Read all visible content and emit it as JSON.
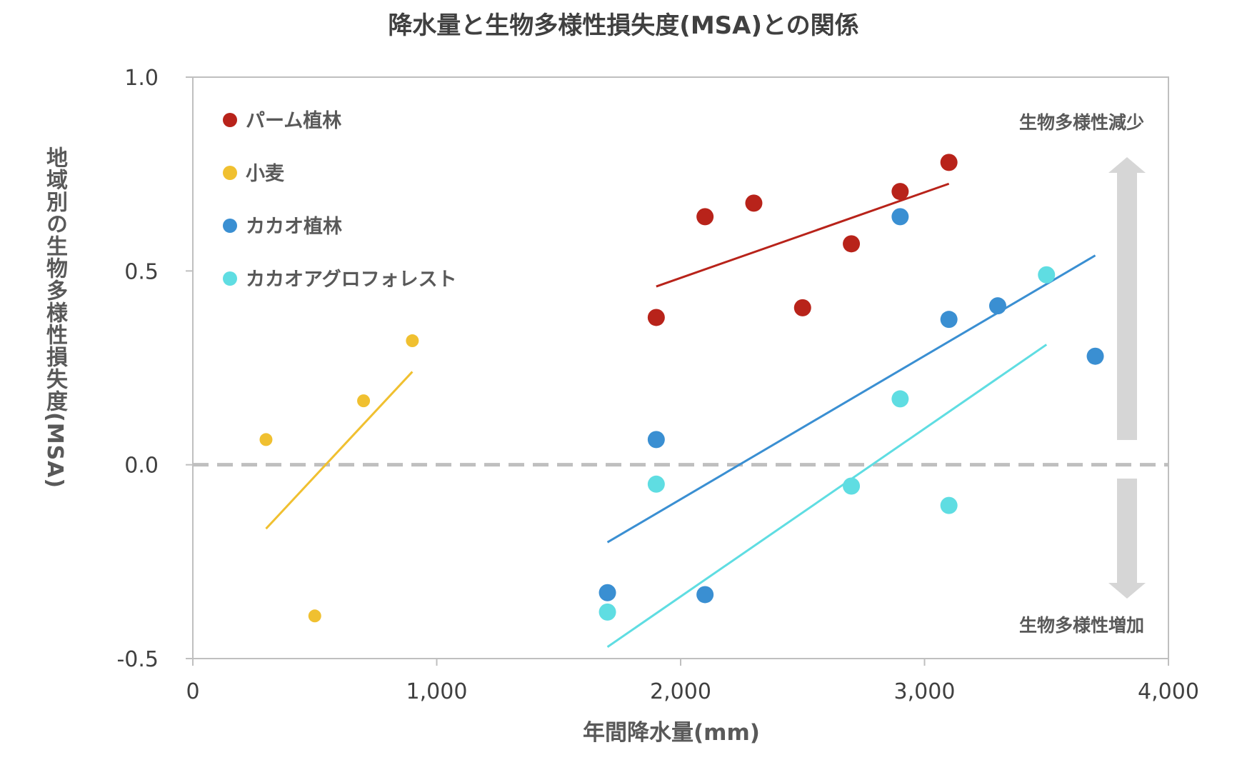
{
  "chart_data": {
    "type": "scatter",
    "title": "降水量と生物多様性損失度(MSA)との関係",
    "xlabel": "年間降水量(mm)",
    "ylabel": "地域別の生物多様性損失度(MSA)",
    "xlim": [
      0,
      4000
    ],
    "ylim": [
      -0.5,
      1.0
    ],
    "x_ticks": [
      {
        "value": 0,
        "label": "0"
      },
      {
        "value": 1000,
        "label": "1,000"
      },
      {
        "value": 2000,
        "label": "2,000"
      },
      {
        "value": 3000,
        "label": "3,000"
      },
      {
        "value": 4000,
        "label": "4,000"
      }
    ],
    "y_ticks": [
      {
        "value": 1.0,
        "label": "1.0"
      },
      {
        "value": 0.5,
        "label": "0.5"
      },
      {
        "value": 0.0,
        "label": "0.0"
      },
      {
        "value": -0.5,
        "label": "-0.5"
      }
    ],
    "zero_line": "dashed",
    "grid": false,
    "legend_position": "top-left",
    "series": [
      {
        "name": "パーム植林",
        "color": "#b8231a",
        "marker_size": "large",
        "points": [
          [
            1900,
            0.38
          ],
          [
            2100,
            0.64
          ],
          [
            2300,
            0.675
          ],
          [
            2500,
            0.405
          ],
          [
            2700,
            0.57
          ],
          [
            2900,
            0.705
          ],
          [
            3100,
            0.78
          ]
        ],
        "trendline": [
          [
            1900,
            0.46
          ],
          [
            3100,
            0.725
          ]
        ]
      },
      {
        "name": "小麦",
        "color": "#f0c030",
        "marker_size": "small",
        "points": [
          [
            300,
            0.065
          ],
          [
            500,
            -0.39
          ],
          [
            700,
            0.165
          ],
          [
            900,
            0.32
          ]
        ],
        "trendline": [
          [
            300,
            -0.165
          ],
          [
            900,
            0.24
          ]
        ]
      },
      {
        "name": "カカオ植林",
        "color": "#3a8fd2",
        "marker_size": "large",
        "points": [
          [
            1700,
            -0.33
          ],
          [
            1900,
            0.065
          ],
          [
            2100,
            -0.335
          ],
          [
            2900,
            0.64
          ],
          [
            3100,
            0.375
          ],
          [
            3300,
            0.41
          ],
          [
            3700,
            0.28
          ]
        ],
        "trendline": [
          [
            1700,
            -0.2
          ],
          [
            3700,
            0.54
          ]
        ]
      },
      {
        "name": "カカオアグロフォレスト",
        "color": "#5fdde2",
        "marker_size": "large",
        "points": [
          [
            1700,
            -0.38
          ],
          [
            1900,
            -0.05
          ],
          [
            2700,
            -0.055
          ],
          [
            2900,
            0.17
          ],
          [
            3100,
            -0.105
          ],
          [
            3500,
            0.49
          ]
        ],
        "trendline": [
          [
            1700,
            -0.47
          ],
          [
            3500,
            0.31
          ]
        ]
      }
    ],
    "annotations": {
      "top": "生物多様性減少",
      "bottom": "生物多様性増加",
      "arrow_color": "#d6d6d6"
    }
  }
}
